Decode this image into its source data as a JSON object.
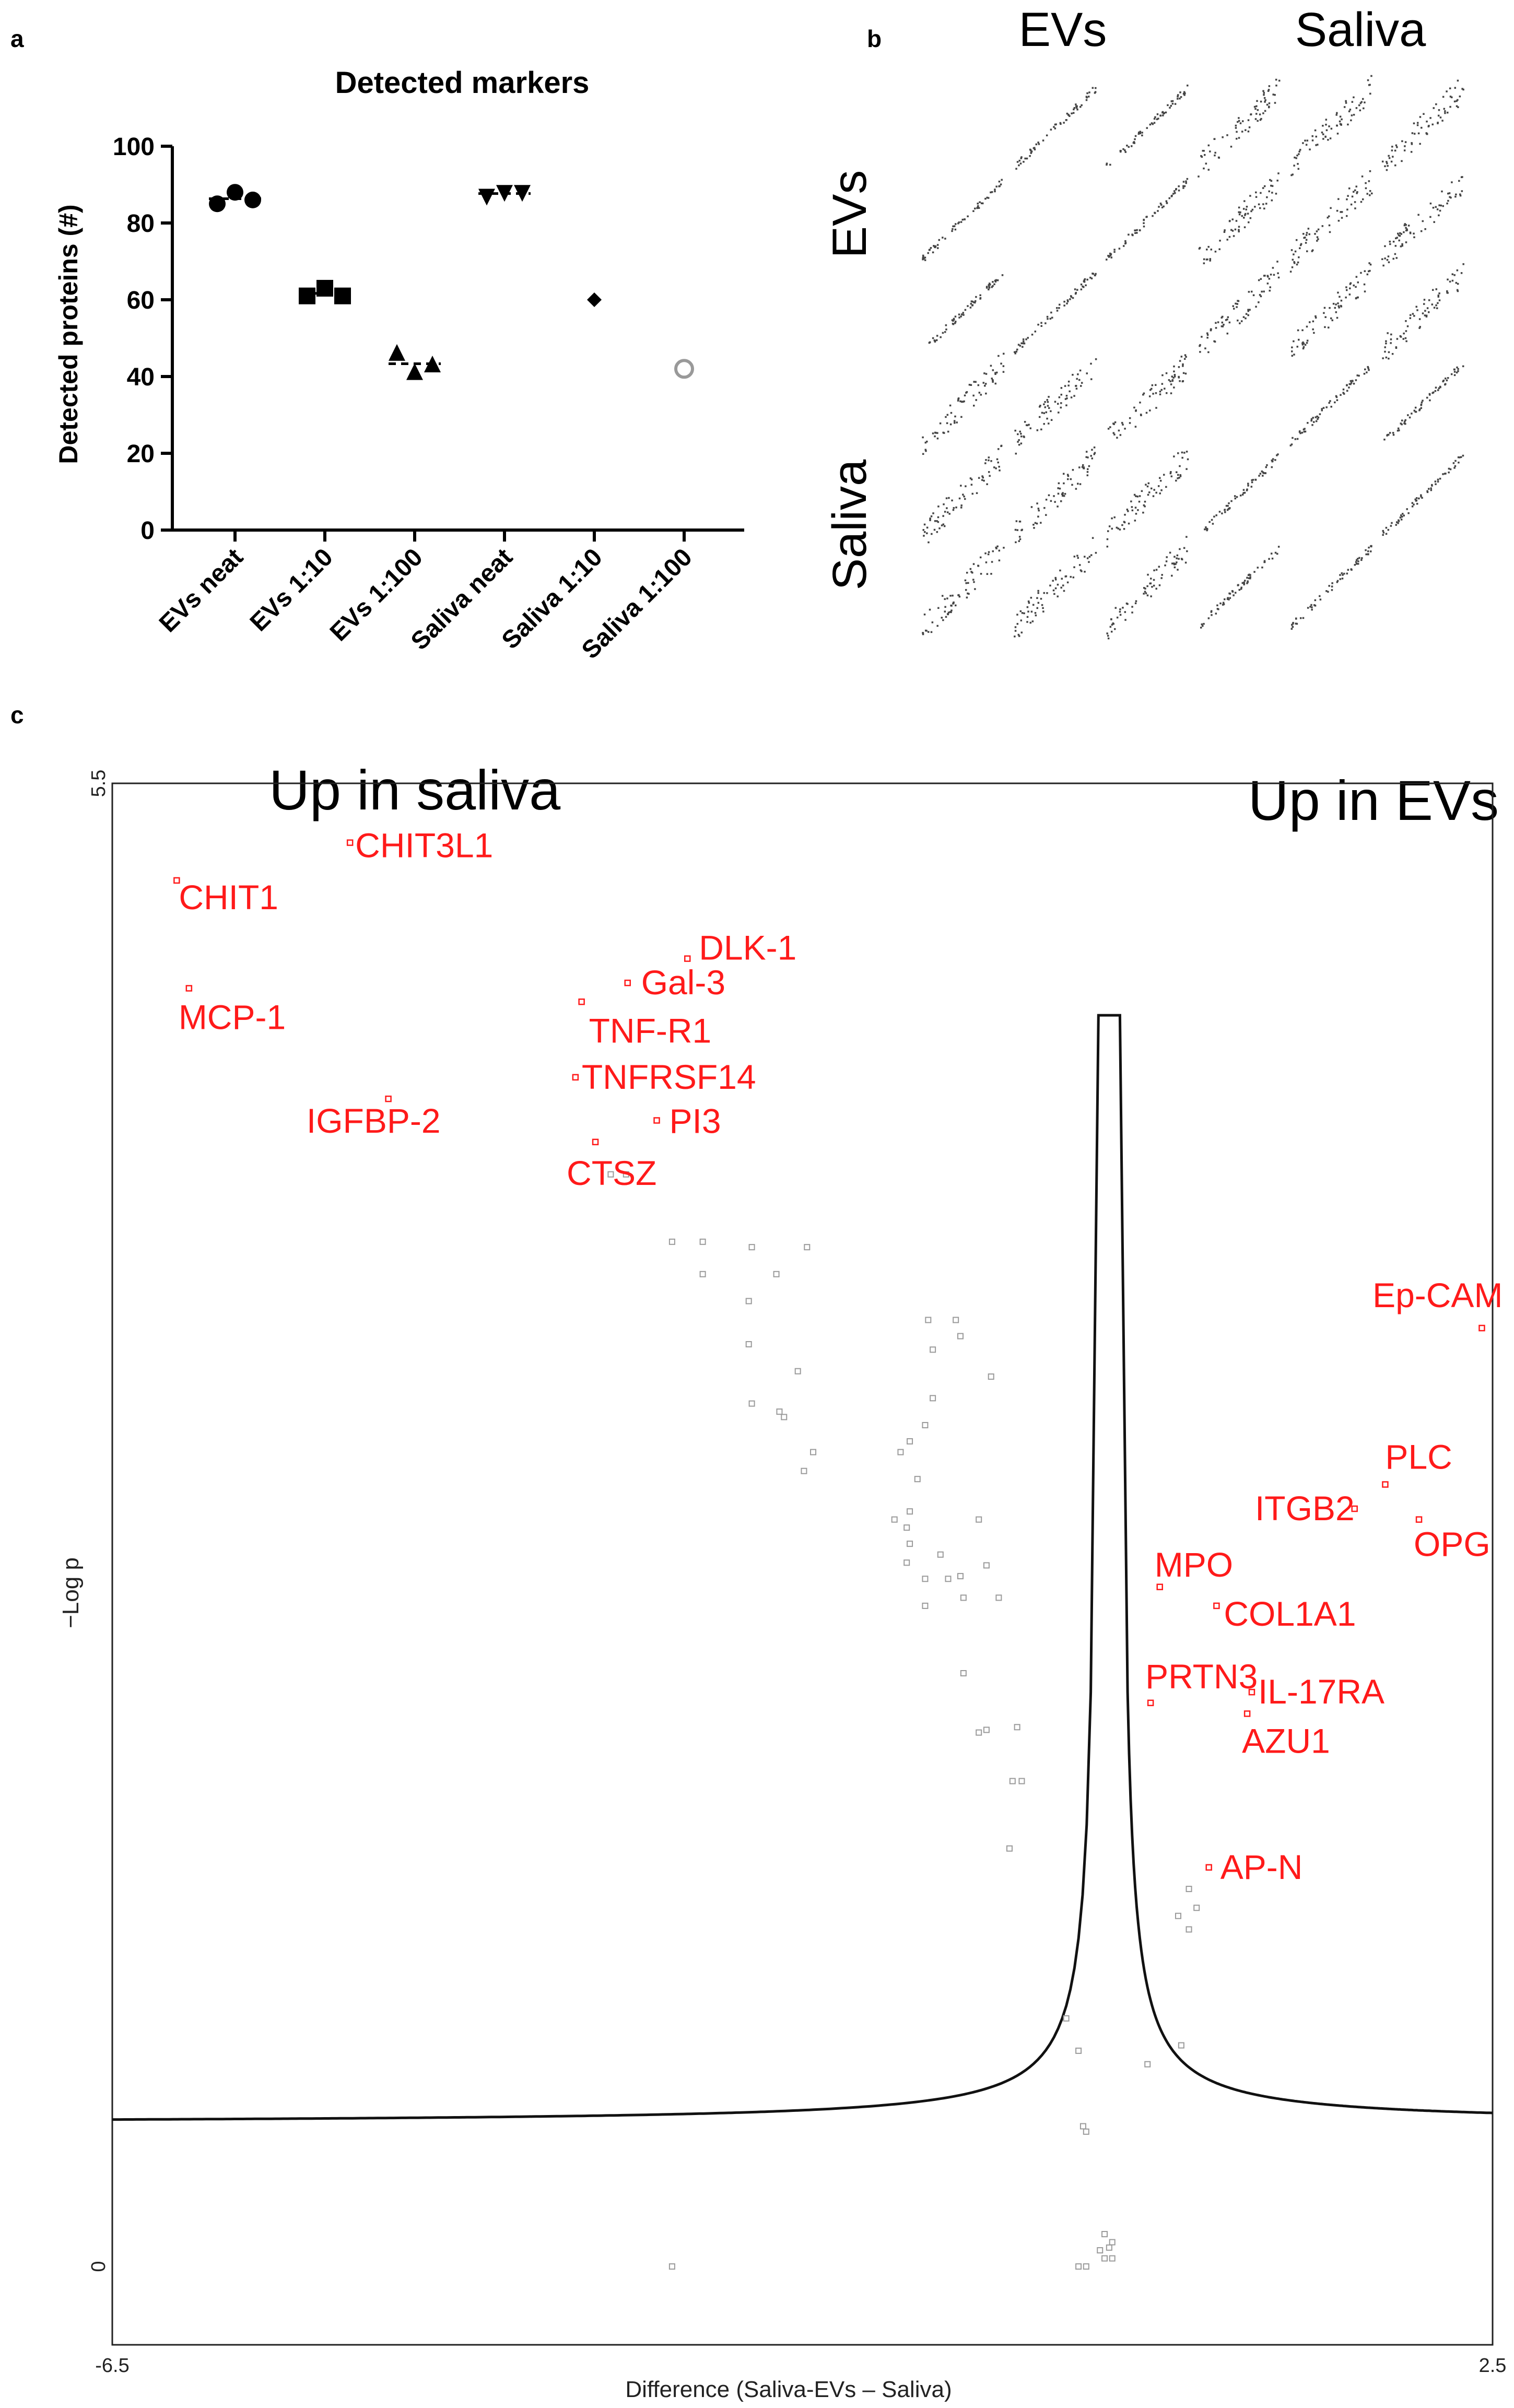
{
  "figure": {
    "letters": {
      "a": "a",
      "b": "b",
      "c": "c"
    }
  },
  "chart_data": [
    {
      "type": "scatter",
      "panel": "a",
      "title": "Detected markers",
      "ylabel": "Detected proteins (#)",
      "xlabel": "",
      "ylim": [
        0,
        100
      ],
      "yticks": [
        "0",
        "20",
        "40",
        "60",
        "80",
        "100"
      ],
      "categories": [
        "EVs neat",
        "EVs 1:10",
        "EVs 1:100",
        "Saliva neat",
        "Saliva 1:10",
        "Saliva 1:100"
      ],
      "series": [
        {
          "name": "EVs neat",
          "marker": "circle",
          "values": [
            85,
            88,
            86
          ]
        },
        {
          "name": "EVs 1:10",
          "marker": "square",
          "values": [
            61,
            63,
            61
          ]
        },
        {
          "name": "EVs 1:100",
          "marker": "triangle",
          "values": [
            46,
            41,
            43
          ]
        },
        {
          "name": "Saliva neat",
          "marker": "triangle-down",
          "values": [
            87,
            88,
            88
          ]
        },
        {
          "name": "Saliva 1:10",
          "marker": "diamond",
          "values": [
            60
          ]
        },
        {
          "name": "Saliva 1:100",
          "marker": "open-circle",
          "values": [
            42
          ]
        }
      ]
    },
    {
      "type": "scatter-matrix",
      "panel": "b",
      "column_groups": [
        "EVs",
        "Saliva"
      ],
      "row_groups": [
        "EVs",
        "Saliva"
      ],
      "samples_per_group": 3
    },
    {
      "type": "volcano",
      "panel": "c",
      "left_title": "Up in saliva",
      "right_title": "Up in EVs",
      "xlabel": "Difference (Saliva-EVs – Saliva)",
      "ylabel": "−Log p",
      "xlim": [
        -6.5,
        2.5
      ],
      "ylim": [
        0,
        5.5
      ],
      "xticks": [
        "-6.5",
        "2.5"
      ],
      "yticks": [
        "0",
        "5.5"
      ],
      "significant": [
        {
          "label": "CHIT3L1",
          "x": -4.95,
          "y": 5.28
        },
        {
          "label": "CHIT1",
          "x": -6.08,
          "y": 5.14
        },
        {
          "label": "DLK-1",
          "x": -2.75,
          "y": 4.85
        },
        {
          "label": "Gal-3",
          "x": -3.14,
          "y": 4.76
        },
        {
          "label": "MCP-1",
          "x": -6.0,
          "y": 4.74
        },
        {
          "label": "TNF-R1",
          "x": -3.44,
          "y": 4.69
        },
        {
          "label": "TNFRSF14",
          "x": -3.48,
          "y": 4.41
        },
        {
          "label": "IGFBP-2",
          "x": -4.7,
          "y": 4.33
        },
        {
          "label": "PI3",
          "x": -2.95,
          "y": 4.25
        },
        {
          "label": "CTSZ",
          "x": -3.35,
          "y": 4.17
        },
        {
          "label": "Ep-CAM",
          "x": 2.43,
          "y": 3.48
        },
        {
          "label": "PLC",
          "x": 1.8,
          "y": 2.9
        },
        {
          "label": "ITGB2",
          "x": 1.6,
          "y": 2.81
        },
        {
          "label": "OPG",
          "x": 2.02,
          "y": 2.77
        },
        {
          "label": "MPO",
          "x": 0.33,
          "y": 2.52
        },
        {
          "label": "COL1A1",
          "x": 0.7,
          "y": 2.45
        },
        {
          "label": "PRTN3",
          "x": 0.27,
          "y": 2.09
        },
        {
          "label": "IL-17RA",
          "x": 0.93,
          "y": 2.13
        },
        {
          "label": "AZU1",
          "x": 0.9,
          "y": 2.05
        },
        {
          "label": "AP-N",
          "x": 0.65,
          "y": 1.48
        }
      ],
      "nonsignificant": [
        [
          -3.25,
          4.05
        ],
        [
          -3.15,
          4.05
        ],
        [
          -2.85,
          3.8
        ],
        [
          -2.65,
          3.8
        ],
        [
          -2.33,
          3.78
        ],
        [
          -1.97,
          3.78
        ],
        [
          -2.65,
          3.68
        ],
        [
          -2.35,
          3.58
        ],
        [
          -2.17,
          3.68
        ],
        [
          -2.35,
          3.42
        ],
        [
          -2.03,
          3.32
        ],
        [
          -1.18,
          3.51
        ],
        [
          -1.0,
          3.51
        ],
        [
          -0.97,
          3.45
        ],
        [
          -1.15,
          3.4
        ],
        [
          -0.77,
          3.3
        ],
        [
          -2.33,
          3.2
        ],
        [
          -2.15,
          3.17
        ],
        [
          -2.12,
          3.15
        ],
        [
          -1.15,
          3.22
        ],
        [
          -1.2,
          3.12
        ],
        [
          -1.93,
          3.02
        ],
        [
          -1.36,
          3.02
        ],
        [
          -1.99,
          2.95
        ],
        [
          -1.3,
          3.06
        ],
        [
          -1.25,
          2.92
        ],
        [
          -1.4,
          2.77
        ],
        [
          -1.3,
          2.8
        ],
        [
          -1.32,
          2.74
        ],
        [
          -0.85,
          2.77
        ],
        [
          -1.3,
          2.68
        ],
        [
          -1.1,
          2.64
        ],
        [
          -0.97,
          2.56
        ],
        [
          -0.8,
          2.6
        ],
        [
          -1.32,
          2.61
        ],
        [
          -1.2,
          2.55
        ],
        [
          -1.05,
          2.55
        ],
        [
          -0.95,
          2.48
        ],
        [
          -1.2,
          2.45
        ],
        [
          -0.72,
          2.48
        ],
        [
          -0.95,
          2.2
        ],
        [
          -0.6,
          2.0
        ],
        [
          -0.8,
          1.99
        ],
        [
          -0.85,
          1.98
        ],
        [
          -0.57,
          1.8
        ],
        [
          -0.63,
          1.8
        ],
        [
          -0.65,
          1.55
        ],
        [
          0.52,
          1.4
        ],
        [
          0.45,
          1.3
        ],
        [
          0.52,
          1.25
        ],
        [
          0.57,
          1.33
        ],
        [
          -0.28,
          0.92
        ],
        [
          -0.2,
          0.8
        ],
        [
          0.25,
          0.75
        ],
        [
          0.47,
          0.82
        ],
        [
          -0.17,
          0.52
        ],
        [
          -0.15,
          0.5
        ],
        [
          -0.03,
          0.12
        ],
        [
          -0.06,
          0.06
        ],
        [
          0.0,
          0.07
        ],
        [
          0.02,
          0.09
        ],
        [
          -0.03,
          0.03
        ],
        [
          0.02,
          0.03
        ],
        [
          -0.15,
          0.0
        ],
        [
          -0.2,
          0.0
        ],
        [
          -2.85,
          0.0
        ]
      ],
      "threshold_curve": "two-sided significance threshold"
    }
  ]
}
